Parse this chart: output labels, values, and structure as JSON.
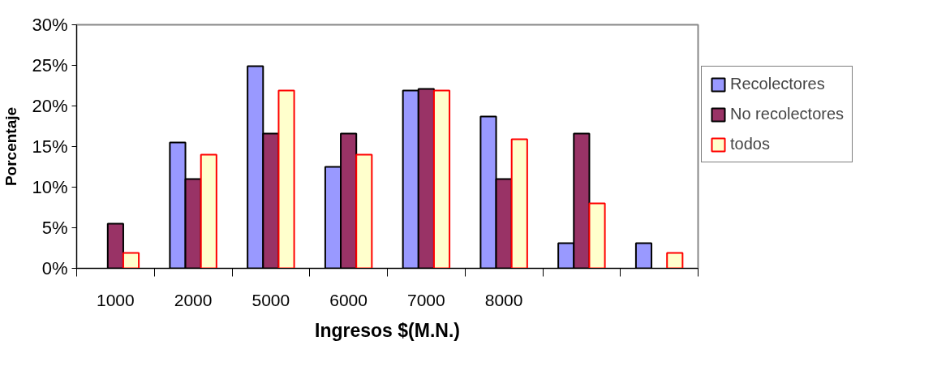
{
  "chart_data": {
    "type": "bar",
    "xlabel": "Ingresos $(M.N.)",
    "ylabel": "Porcentaje",
    "categories": [
      "1000",
      "2000",
      "5000",
      "6000",
      "7000",
      "8000",
      null,
      null
    ],
    "series": [
      {
        "name": "Recolectores",
        "color": "#9999ff",
        "values": [
          null,
          15.5,
          24.9,
          12.5,
          21.9,
          18.7,
          3.1,
          3.1
        ]
      },
      {
        "name": "No recolectores",
        "color": "#993366",
        "values": [
          5.5,
          11,
          16.6,
          16.6,
          22.1,
          11,
          16.6,
          null
        ]
      },
      {
        "name": "todos",
        "color": "#ffffcc",
        "values": [
          1.9,
          14,
          21.9,
          14,
          21.9,
          15.9,
          8,
          1.9
        ]
      }
    ],
    "ylim": [
      0,
      30
    ],
    "yticks": [
      {
        "value": 0,
        "label": "0%"
      },
      {
        "value": 5,
        "label": "5%"
      },
      {
        "value": 10,
        "label": "10%"
      },
      {
        "value": 15,
        "label": "15%"
      },
      {
        "value": 20,
        "label": "20%"
      },
      {
        "value": 25,
        "label": "25%"
      },
      {
        "value": 30,
        "label": "30%"
      }
    ],
    "grid": false,
    "legend": "right"
  }
}
